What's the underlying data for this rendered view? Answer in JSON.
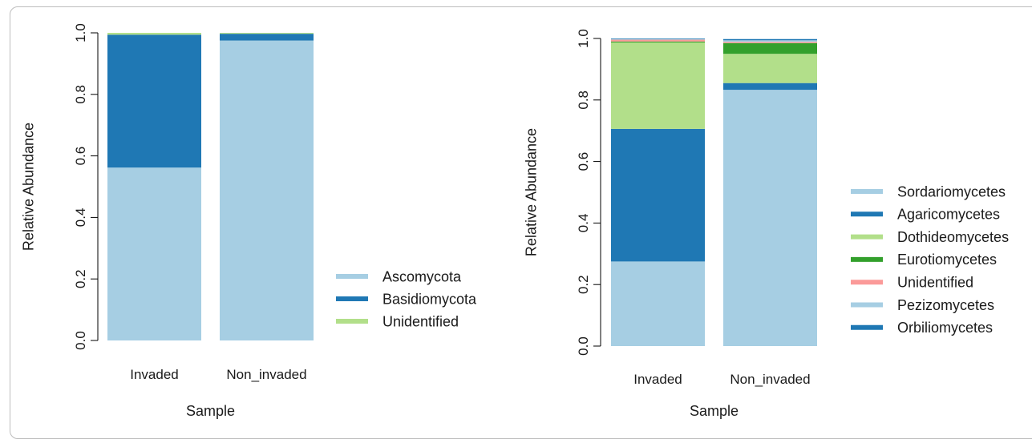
{
  "chart_data": [
    {
      "type": "bar",
      "stacked": true,
      "title": "",
      "xlabel": "Sample",
      "ylabel": "Relative Abundance",
      "ylim": [
        0,
        1
      ],
      "yticks": [
        "0.0",
        "0.2",
        "0.4",
        "0.6",
        "0.8",
        "1.0"
      ],
      "categories": [
        "Invaded",
        "Non_invaded"
      ],
      "series": [
        {
          "name": "Ascomycota",
          "color": "#a6cee3",
          "values": [
            0.562,
            0.975
          ]
        },
        {
          "name": "Basidiomycota",
          "color": "#1f78b4",
          "values": [
            0.432,
            0.022
          ]
        },
        {
          "name": "Unidentified",
          "color": "#b2df8a",
          "values": [
            0.006,
            0.003
          ]
        }
      ],
      "legend": [
        "Ascomycota",
        "Basidiomycota",
        "Unidentified"
      ],
      "legend_position": "right"
    },
    {
      "type": "bar",
      "stacked": true,
      "title": "",
      "xlabel": "Sample",
      "ylabel": "Relative Abundance",
      "ylim": [
        0,
        1
      ],
      "yticks": [
        "0.0",
        "0.2",
        "0.4",
        "0.6",
        "0.8",
        "1.0"
      ],
      "categories": [
        "Invaded",
        "Non_invaded"
      ],
      "series": [
        {
          "name": "Sordariomycetes",
          "color": "#a6cee3",
          "values": [
            0.275,
            0.833
          ]
        },
        {
          "name": "Agaricomycetes",
          "color": "#1f78b4",
          "values": [
            0.431,
            0.022
          ]
        },
        {
          "name": "Dothideomycetes",
          "color": "#b2df8a",
          "values": [
            0.281,
            0.095
          ]
        },
        {
          "name": "Eurotiomycetes",
          "color": "#33a02c",
          "values": [
            0.003,
            0.035
          ]
        },
        {
          "name": "Unidentified",
          "color": "#fb9a99",
          "values": [
            0.006,
            0.004
          ]
        },
        {
          "name": "Pezizomycetes",
          "color": "#a6cee3",
          "values": [
            0.002,
            0.005
          ]
        },
        {
          "name": "Orbiliomycetes",
          "color": "#1f78b4",
          "values": [
            0.002,
            0.004
          ]
        }
      ],
      "legend": [
        "Sordariomycetes",
        "Agaricomycetes",
        "Dothideomycetes",
        "Eurotiomycetes",
        "Unidentified",
        "Pezizomycetes",
        "Orbiliomycetes"
      ],
      "legend_position": "right"
    }
  ]
}
